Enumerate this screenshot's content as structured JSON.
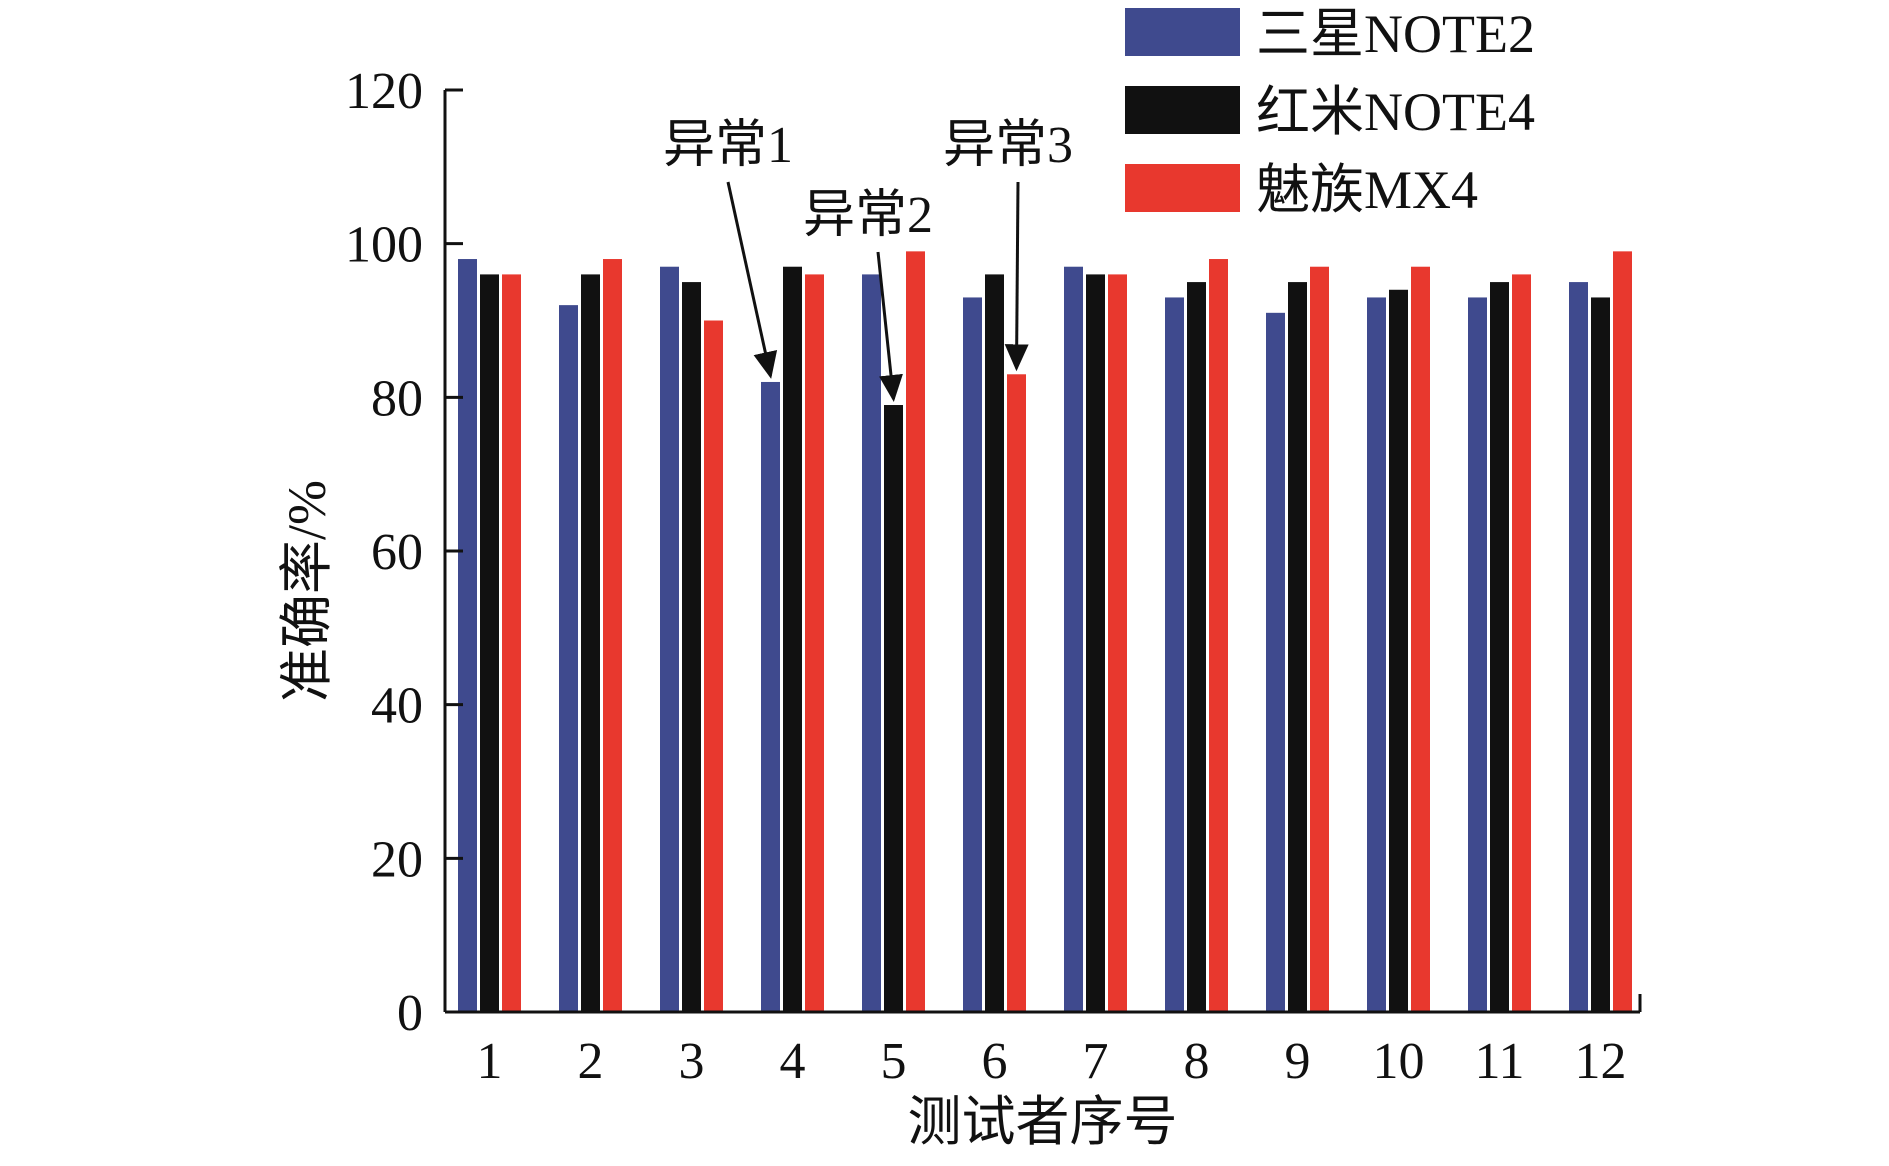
{
  "chart_data": {
    "type": "bar",
    "title": "",
    "xlabel": "测试者序号",
    "ylabel": "准确率/%",
    "ylim": [
      0,
      120
    ],
    "yticks": [
      0,
      20,
      40,
      60,
      80,
      100,
      120
    ],
    "categories": [
      "1",
      "2",
      "3",
      "4",
      "5",
      "6",
      "7",
      "8",
      "9",
      "10",
      "11",
      "12"
    ],
    "series": [
      {
        "name": "三星NOTE2",
        "color": "#3f4a8e",
        "values": [
          98,
          92,
          97,
          82,
          96,
          93,
          97,
          93,
          91,
          93,
          93,
          95
        ]
      },
      {
        "name": "红米NOTE4",
        "color": "#111111",
        "values": [
          96,
          96,
          95,
          97,
          79,
          96,
          96,
          95,
          95,
          94,
          95,
          93
        ]
      },
      {
        "name": "魅族MX4",
        "color": "#e8382e",
        "values": [
          96,
          98,
          90,
          96,
          99,
          83,
          96,
          98,
          97,
          97,
          96,
          99
        ]
      }
    ],
    "legend": {
      "position": "top-right"
    },
    "grid": false,
    "annotations": [
      {
        "text": "异常1",
        "category": "4",
        "series": 0
      },
      {
        "text": "异常2",
        "category": "5",
        "series": 1
      },
      {
        "text": "异常3",
        "category": "6",
        "series": 2
      }
    ]
  }
}
